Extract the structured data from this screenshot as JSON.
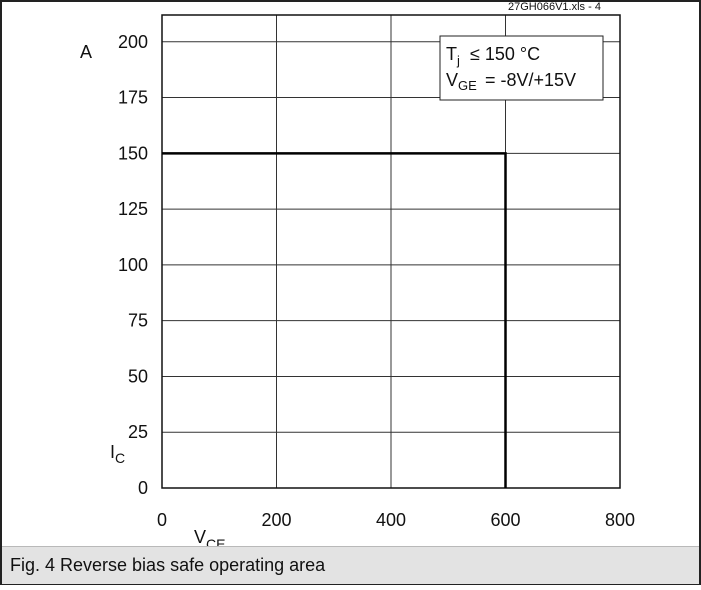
{
  "chart_data": {
    "type": "line",
    "source_tag": "27GH066V1.xls - 4",
    "y_unit": "A",
    "x_unit": "V",
    "y_symbol": {
      "main": "I",
      "sub": "C"
    },
    "x_symbol": {
      "main": "V",
      "sub": "CE"
    },
    "xlim": [
      0,
      800
    ],
    "ylim": [
      0,
      212
    ],
    "x_ticks": [
      "0",
      "200",
      "400",
      "600",
      "800"
    ],
    "x_tick_values": [
      0,
      200,
      400,
      600,
      800
    ],
    "y_ticks": [
      "0",
      "25",
      "50",
      "75",
      "100",
      "125",
      "150",
      "175",
      "200"
    ],
    "y_tick_values": [
      0,
      25,
      50,
      75,
      100,
      125,
      150,
      175,
      200
    ],
    "grid": true,
    "series": [
      {
        "x": [
          0,
          600,
          600
        ],
        "y": [
          150,
          150,
          0
        ]
      }
    ],
    "annotation": {
      "line1": {
        "main": "T",
        "sub": "j",
        "rest": "≤ 150 °C"
      },
      "line2": {
        "main": "V",
        "sub": "GE",
        "rest": "= -8V/+15V"
      }
    }
  },
  "caption": "Fig. 4 Reverse bias safe operating area"
}
